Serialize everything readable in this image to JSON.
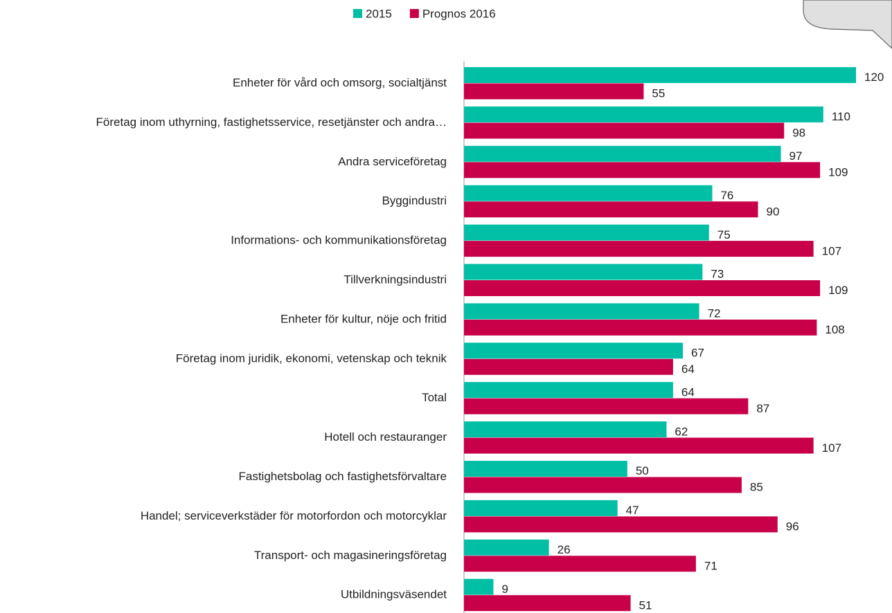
{
  "chart_data": {
    "type": "barh",
    "categories": [
      "Enheter för vård och omsorg, socialtjänst",
      "Företag inom uthyrning, fastighetsservice, resetjänster och andra…",
      "Andra serviceföretag",
      "Byggindustri",
      "Informations- och kommunikationsföretag",
      "Tillverkningsindustri",
      "Enheter för kultur, nöje och fritid",
      "Företag inom juridik, ekonomi, vetenskap och teknik",
      "Total",
      "Hotell och restauranger",
      "Fastighetsbolag och fastighetsförvaltare",
      "Handel; serviceverkstäder för motorfordon och motorcyklar",
      "Transport- och magasineringsföretag",
      "Utbildningsväsendet"
    ],
    "series": [
      {
        "name": "2015",
        "color": "#00bfa5",
        "values": [
          120,
          110,
          97,
          76,
          75,
          73,
          72,
          67,
          64,
          62,
          50,
          47,
          26,
          9
        ]
      },
      {
        "name": "Prognos 2016",
        "color": "#c8004a",
        "values": [
          55,
          98,
          109,
          90,
          107,
          109,
          108,
          64,
          87,
          107,
          85,
          96,
          71,
          51
        ]
      }
    ],
    "legend": "top"
  }
}
